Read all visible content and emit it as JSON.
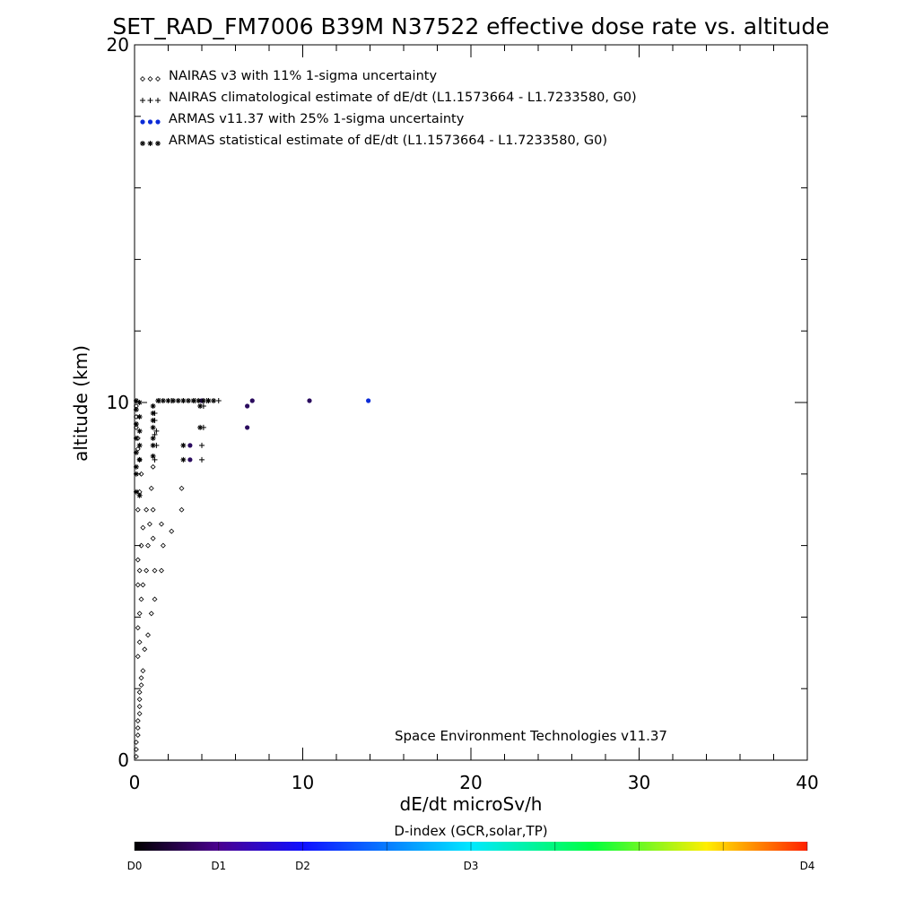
{
  "chart_data": {
    "type": "scatter",
    "title": "SET_RAD_FM7006  B39M N37522 effective dose rate vs. altitude",
    "xlabel": "dE/dt microSv/h",
    "ylabel": "altitude (km)",
    "xlim": [
      0,
      40
    ],
    "ylim": [
      0,
      20
    ],
    "x_ticks": [
      "0",
      "10",
      "20",
      "30",
      "40"
    ],
    "y_ticks": [
      "0",
      "10",
      "20"
    ],
    "grid": false,
    "legend_position": "top-left",
    "legend": [
      {
        "marker": "diamond",
        "label": "NAIRAS v3 with 11% 1-sigma uncertainty"
      },
      {
        "marker": "plus",
        "label": "NAIRAS climatological estimate of dE/dt (L1.1573664 - L1.7233580, G0)"
      },
      {
        "marker": "dot",
        "label": "ARMAS v11.37 with 25% 1-sigma uncertainty"
      },
      {
        "marker": "asterisk",
        "label": "ARMAS statistical estimate of dE/dt (L1.1573664 - L1.7233580, G0)"
      }
    ],
    "annotation": "Space Environment Technologies v11.37",
    "colorbar": {
      "title": "D-index (GCR,solar,TP)",
      "labels": [
        {
          "text": "D0",
          "pos": 0.0
        },
        {
          "text": "D1",
          "pos": 0.125
        },
        {
          "text": "D2",
          "pos": 0.25
        },
        {
          "text": "D3",
          "pos": 0.5
        },
        {
          "text": "D4",
          "pos": 1.0
        }
      ]
    },
    "series": [
      {
        "marker": "diamond",
        "points": [
          [
            0.1,
            0.1
          ],
          [
            0.1,
            0.3
          ],
          [
            0.1,
            0.5
          ],
          [
            0.2,
            0.7
          ],
          [
            0.2,
            0.9
          ],
          [
            0.2,
            1.1
          ],
          [
            0.3,
            1.3
          ],
          [
            0.3,
            1.5
          ],
          [
            0.3,
            1.7
          ],
          [
            0.3,
            1.9
          ],
          [
            0.4,
            2.1
          ],
          [
            0.4,
            2.3
          ],
          [
            0.5,
            2.5
          ],
          [
            0.2,
            2.9
          ],
          [
            0.6,
            3.1
          ],
          [
            0.3,
            3.3
          ],
          [
            0.8,
            3.5
          ],
          [
            0.2,
            3.7
          ],
          [
            0.3,
            4.1
          ],
          [
            1.0,
            4.1
          ],
          [
            0.4,
            4.5
          ],
          [
            1.2,
            4.5
          ],
          [
            0.2,
            4.9
          ],
          [
            0.5,
            4.9
          ],
          [
            0.3,
            5.3
          ],
          [
            0.7,
            5.3
          ],
          [
            1.2,
            5.3
          ],
          [
            0.2,
            5.6
          ],
          [
            1.6,
            5.3
          ],
          [
            0.4,
            6.0
          ],
          [
            0.8,
            6.0
          ],
          [
            1.1,
            6.2
          ],
          [
            1.7,
            6.0
          ],
          [
            0.5,
            6.5
          ],
          [
            0.9,
            6.6
          ],
          [
            1.6,
            6.6
          ],
          [
            2.2,
            6.4
          ],
          [
            0.2,
            7.0
          ],
          [
            0.7,
            7.0
          ],
          [
            1.1,
            7.0
          ],
          [
            2.8,
            7.0
          ],
          [
            0.3,
            7.5
          ],
          [
            1.0,
            7.6
          ],
          [
            2.8,
            7.6
          ],
          [
            0.4,
            8.0
          ],
          [
            1.1,
            8.2
          ],
          [
            0.3,
            8.4
          ],
          [
            0.2,
            8.7
          ],
          [
            0.2,
            9.0
          ],
          [
            0.1,
            9.3
          ],
          [
            0.1,
            9.6
          ],
          [
            0.1,
            9.9
          ]
        ]
      },
      {
        "marker": "plus",
        "points": [
          [
            1.2,
            8.4
          ],
          [
            4.0,
            8.4
          ],
          [
            1.3,
            8.8
          ],
          [
            4.0,
            8.8
          ],
          [
            1.2,
            9.1
          ],
          [
            1.3,
            9.2
          ],
          [
            4.1,
            9.3
          ],
          [
            1.2,
            9.5
          ],
          [
            1.2,
            9.7
          ],
          [
            4.1,
            9.9
          ],
          [
            1.5,
            10.05
          ],
          [
            2.2,
            10.05
          ],
          [
            2.9,
            10.05
          ],
          [
            3.6,
            10.05
          ],
          [
            4.3,
            10.05
          ],
          [
            5.0,
            10.05
          ]
        ]
      },
      {
        "marker": "dot",
        "color": "#2a0b5e",
        "points": [
          [
            3.3,
            8.4
          ],
          [
            3.3,
            8.8
          ],
          [
            6.7,
            9.3
          ],
          [
            6.7,
            9.9
          ],
          [
            7.0,
            10.05
          ],
          [
            10.4,
            10.05
          ],
          [
            4.0,
            10.05
          ]
        ]
      },
      {
        "marker": "dot",
        "color": "#0b2bd8",
        "points": [
          [
            13.9,
            10.05
          ]
        ]
      },
      {
        "marker": "asterisk",
        "points": [
          [
            0.1,
            7.5
          ],
          [
            0.1,
            8.0
          ],
          [
            0.1,
            8.2
          ],
          [
            0.1,
            8.6
          ],
          [
            0.1,
            9.0
          ],
          [
            0.1,
            9.4
          ],
          [
            0.1,
            9.8
          ],
          [
            0.1,
            10.05
          ],
          [
            0.3,
            7.4
          ],
          [
            0.3,
            8.4
          ],
          [
            0.3,
            8.8
          ],
          [
            0.3,
            9.2
          ],
          [
            0.3,
            9.6
          ],
          [
            0.3,
            10.0
          ],
          [
            1.1,
            8.5
          ],
          [
            1.1,
            8.8
          ],
          [
            1.1,
            9.0
          ],
          [
            1.1,
            9.3
          ],
          [
            1.1,
            9.5
          ],
          [
            1.1,
            9.7
          ],
          [
            1.1,
            9.9
          ],
          [
            1.4,
            10.05
          ],
          [
            1.7,
            10.05
          ],
          [
            2.0,
            10.05
          ],
          [
            2.3,
            10.05
          ],
          [
            2.6,
            10.05
          ],
          [
            2.9,
            10.05
          ],
          [
            3.2,
            10.05
          ],
          [
            3.5,
            10.05
          ],
          [
            3.8,
            10.05
          ],
          [
            4.1,
            10.05
          ],
          [
            4.4,
            10.05
          ],
          [
            4.7,
            10.05
          ],
          [
            2.9,
            8.4
          ],
          [
            2.9,
            8.8
          ],
          [
            3.9,
            9.3
          ],
          [
            3.9,
            9.9
          ]
        ]
      }
    ]
  }
}
